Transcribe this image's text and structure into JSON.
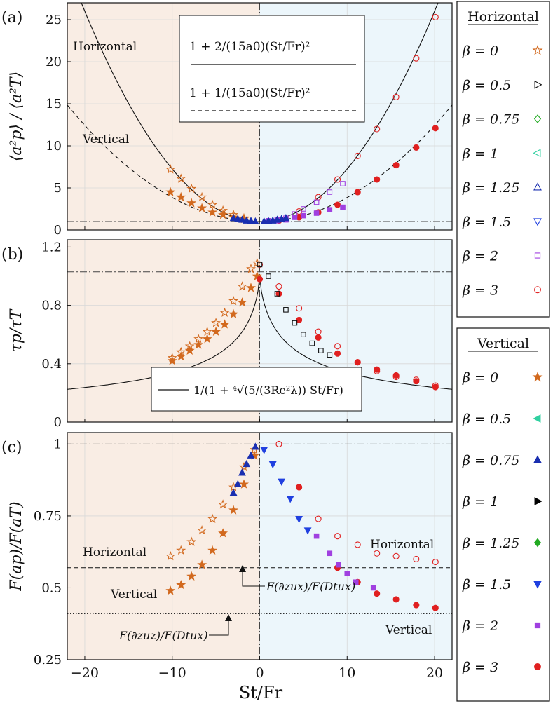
{
  "chart_data": {
    "type": "scatter",
    "xlabel": "St/Fr",
    "xlim": [
      -22,
      22
    ],
    "xticks": [
      "−20",
      "−10",
      "0",
      "10",
      "20"
    ],
    "xtick_values": [
      -20,
      -10,
      0,
      10,
      20
    ],
    "colors": {
      "bg_left": "#f9ede4",
      "bg_right": "#ecf6fb",
      "beta0": "#d2691e",
      "beta05": "#111111",
      "beta075": "#22aa22",
      "beta1": "#30d0a0",
      "beta125": "#1a2fb0",
      "beta15": "#2040e0",
      "beta2": "#a040e0",
      "beta3": "#e02020",
      "vbeta05": "#30d0a0",
      "vbeta075": "#1a2fb0",
      "vbeta1": "#000000",
      "vbeta125": "#22aa22",
      "vbeta15": "#2040e0"
    },
    "panels": [
      {
        "label": "(a)",
        "ylabel": "⟨a²p⟩ / ⟨a²T⟩",
        "ylim": [
          0,
          27
        ],
        "yticks": [
          "0",
          "5",
          "10",
          "15",
          "20",
          "25"
        ],
        "ytick_values": [
          0,
          5,
          10,
          15,
          20,
          25
        ],
        "refline": 1,
        "annotations": [
          "Horizontal",
          "Vertical"
        ],
        "legend_box": {
          "line1": "1 + 2/(15a0)(St/Fr)²",
          "line2": "1 + 1/(15a0)(St/Fr)²"
        },
        "series": [
          {
            "name": "Horizontal β=0",
            "marker": "star-open",
            "color": "#d2691e",
            "x": [
              -10.2,
              -9,
              -7.8,
              -6.6,
              -5.4,
              -4.2,
              -3,
              -1.8
            ],
            "y": [
              7.2,
              6.1,
              4.9,
              3.9,
              3.0,
              2.3,
              1.8,
              1.4
            ]
          },
          {
            "name": "Vertical β=0",
            "marker": "star",
            "color": "#d2691e",
            "x": [
              -10.2,
              -9,
              -7.8,
              -6.6,
              -5.4,
              -4.2,
              -3,
              -1.8
            ],
            "y": [
              4.5,
              3.9,
              3.2,
              2.6,
              2.1,
              1.8,
              1.5,
              1.3
            ]
          },
          {
            "name": "Horizontal β=3",
            "marker": "circle-open",
            "color": "#e02020",
            "x": [
              2.2,
              4.5,
              6.7,
              8.9,
              11.2,
              13.4,
              15.6,
              17.9,
              20.1
            ],
            "y": [
              1.2,
              2.2,
              3.9,
              6.0,
              8.8,
              12.0,
              15.8,
              20.4,
              25.3
            ]
          },
          {
            "name": "Vertical β=3",
            "marker": "circle",
            "color": "#e02020",
            "x": [
              2.2,
              4.5,
              6.7,
              8.9,
              11.2,
              13.4,
              15.6,
              17.9,
              20.1
            ],
            "y": [
              1.1,
              1.5,
              2.1,
              3.0,
              4.5,
              6.0,
              7.7,
              9.8,
              12.1
            ]
          },
          {
            "name": "Horizontal β=2",
            "marker": "square-open",
            "color": "#a040e0",
            "x": [
              1,
              2,
              3,
              4,
              5,
              6.5,
              8,
              9.5
            ],
            "y": [
              1.1,
              1.2,
              1.4,
              1.9,
              2.5,
              3.3,
              4.5,
              5.5
            ]
          },
          {
            "name": "Vertical β=2",
            "marker": "square",
            "color": "#a040e0",
            "x": [
              1,
              2,
              3,
              4,
              5,
              6.5,
              8,
              9.5
            ],
            "y": [
              1.0,
              1.1,
              1.2,
              1.5,
              1.7,
              2.0,
              2.4,
              2.7
            ]
          },
          {
            "name": "β=0.5–1.5 cluster",
            "marker": "triangle",
            "color": "#1a2fb0",
            "x": [
              -3,
              -2.5,
              -2,
              -1.5,
              -1,
              -0.5,
              0.5,
              1,
              1.5,
              2,
              2.5,
              3
            ],
            "y": [
              1.4,
              1.3,
              1.2,
              1.1,
              1.05,
              1.0,
              1.0,
              1.05,
              1.1,
              1.2,
              1.3,
              1.4
            ]
          }
        ]
      },
      {
        "label": "(b)",
        "ylabel": "τp/τT",
        "ylim": [
          0,
          1.25
        ],
        "yticks": [
          "0",
          "0.4",
          "0.8",
          "1.2"
        ],
        "ytick_values": [
          0,
          0.4,
          0.8,
          1.2
        ],
        "refline": 1.03,
        "legend_box": {
          "line1": "1/(1 + ⁴√(5/(3Re²λ)) St/Fr)"
        },
        "series": [
          {
            "name": "Horizontal β=0",
            "marker": "star-open",
            "color": "#d2691e",
            "x": [
              -10,
              -9,
              -8,
              -7,
              -6,
              -5,
              -4,
              -3,
              -2,
              -1,
              -0.3
            ],
            "y": [
              0.44,
              0.48,
              0.52,
              0.57,
              0.62,
              0.68,
              0.75,
              0.83,
              0.93,
              1.05,
              1.09
            ]
          },
          {
            "name": "Vertical β=0",
            "marker": "star",
            "color": "#d2691e",
            "x": [
              -10,
              -9,
              -8,
              -7,
              -6,
              -5,
              -4,
              -3,
              -2,
              -1,
              -0.3
            ],
            "y": [
              0.42,
              0.45,
              0.49,
              0.53,
              0.57,
              0.62,
              0.67,
              0.74,
              0.82,
              0.92,
              1.0
            ]
          },
          {
            "name": "Horizontal β=3",
            "marker": "circle-open",
            "color": "#e02020",
            "x": [
              0,
              2.2,
              4.5,
              6.7,
              8.9,
              11.2,
              13.4,
              15.6,
              17.9,
              20.1
            ],
            "y": [
              1.08,
              0.93,
              0.78,
              0.62,
              0.52,
              0.41,
              0.35,
              0.31,
              0.29,
              0.25
            ]
          },
          {
            "name": "Vertical β=3",
            "marker": "circle",
            "color": "#e02020",
            "x": [
              0,
              2.2,
              4.5,
              6.7,
              8.9,
              11.2,
              13.4,
              15.6,
              17.9,
              20.1
            ],
            "y": [
              0.98,
              0.88,
              0.7,
              0.58,
              0.47,
              0.41,
              0.36,
              0.32,
              0.28,
              0.24
            ]
          },
          {
            "name": "Horizontal β=0.5",
            "marker": "square-open",
            "color": "#111111",
            "x": [
              0,
              1,
              2,
              3,
              4,
              5,
              6,
              7,
              8
            ],
            "y": [
              1.08,
              1.0,
              0.88,
              0.77,
              0.68,
              0.6,
              0.54,
              0.49,
              0.46
            ]
          }
        ]
      },
      {
        "label": "(c)",
        "ylabel": "F(ap)/F(aT)",
        "ylim": [
          0.25,
          1.04
        ],
        "yticks": [
          "0.25",
          "0.5",
          "0.75",
          "1"
        ],
        "ytick_values": [
          0.25,
          0.5,
          0.75,
          1
        ],
        "refline": 1,
        "dashed_y": 0.57,
        "dotted_y": 0.41,
        "annotations": [
          "Horizontal",
          "Vertical",
          "Horizontal",
          "Vertical"
        ],
        "arrow_labels": [
          "F(∂zux)/F(Dtux)",
          "F(∂zuz)/F(Dtux)"
        ],
        "series": [
          {
            "name": "Horizontal β=0",
            "marker": "star-open",
            "color": "#d2691e",
            "x": [
              -10.2,
              -9,
              -7.8,
              -6.6,
              -5.4,
              -4.2,
              -3,
              -1.8,
              -0.6
            ],
            "y": [
              0.61,
              0.63,
              0.66,
              0.7,
              0.74,
              0.79,
              0.85,
              0.92,
              0.98
            ]
          },
          {
            "name": "Vertical β=0",
            "marker": "star",
            "color": "#d2691e",
            "x": [
              -10.2,
              -9,
              -7.8,
              -6.6,
              -5.4,
              -4.2,
              -3,
              -1.8,
              -0.6
            ],
            "y": [
              0.49,
              0.51,
              0.54,
              0.58,
              0.63,
              0.69,
              0.77,
              0.86,
              0.96
            ]
          },
          {
            "name": "Horizontal β=3",
            "marker": "circle-open",
            "color": "#e02020",
            "x": [
              2.2,
              4.5,
              6.7,
              8.9,
              11.2,
              13.4,
              15.6,
              17.9,
              20.1
            ],
            "y": [
              1.0,
              0.85,
              0.74,
              0.68,
              0.65,
              0.62,
              0.61,
              0.6,
              0.59
            ]
          },
          {
            "name": "Vertical β=3",
            "marker": "circle",
            "color": "#e02020",
            "x": [
              4.5,
              8.9,
              11.2,
              13.4,
              15.6,
              17.9,
              20.1
            ],
            "y": [
              0.85,
              0.57,
              0.52,
              0.48,
              0.46,
              0.44,
              0.43
            ]
          },
          {
            "name": "Vertical β=2",
            "marker": "square",
            "color": "#a040e0",
            "x": [
              6.5,
              8,
              9,
              10,
              11,
              13
            ],
            "y": [
              0.68,
              0.62,
              0.58,
              0.55,
              0.52,
              0.5
            ]
          },
          {
            "name": "Vertical β=1.5",
            "marker": "triangle-down",
            "color": "#2040e0",
            "x": [
              0.5,
              1.5,
              2.5,
              3.5,
              4.5,
              5.5
            ],
            "y": [
              0.98,
              0.93,
              0.87,
              0.81,
              0.74,
              0.7
            ]
          },
          {
            "name": "Vertical β=0.75",
            "marker": "triangle",
            "color": "#1a2fb0",
            "x": [
              -3,
              -2.5,
              -2,
              -1.5,
              -1,
              -0.5
            ],
            "y": [
              0.83,
              0.86,
              0.9,
              0.93,
              0.96,
              0.99
            ]
          }
        ]
      }
    ],
    "legend_horizontal": {
      "title": "Horizontal",
      "items": [
        {
          "label": "β = 0",
          "marker": "star-open",
          "color": "#d2691e"
        },
        {
          "label": "β = 0.5",
          "marker": "triangle-right-open",
          "color": "#111111"
        },
        {
          "label": "β = 0.75",
          "marker": "diamond-open",
          "color": "#22aa22"
        },
        {
          "label": "β = 1",
          "marker": "triangle-left-open",
          "color": "#30d0a0"
        },
        {
          "label": "β = 1.25",
          "marker": "triangle-open",
          "color": "#1a2fb0"
        },
        {
          "label": "β = 1.5",
          "marker": "triangle-down-open",
          "color": "#2040e0"
        },
        {
          "label": "β = 2",
          "marker": "square-open",
          "color": "#a040e0"
        },
        {
          "label": "β = 3",
          "marker": "circle-open",
          "color": "#e02020"
        }
      ]
    },
    "legend_vertical": {
      "title": "Vertical",
      "items": [
        {
          "label": "β = 0",
          "marker": "star",
          "color": "#d2691e"
        },
        {
          "label": "β = 0.5",
          "marker": "triangle-left",
          "color": "#30d0a0"
        },
        {
          "label": "β = 0.75",
          "marker": "triangle",
          "color": "#1a2fb0"
        },
        {
          "label": "β = 1",
          "marker": "triangle-right",
          "color": "#000000"
        },
        {
          "label": "β = 1.25",
          "marker": "diamond",
          "color": "#22aa22"
        },
        {
          "label": "β = 1.5",
          "marker": "triangle-down",
          "color": "#2040e0"
        },
        {
          "label": "β = 2",
          "marker": "square",
          "color": "#a040e0"
        },
        {
          "label": "β = 3",
          "marker": "circle",
          "color": "#e02020"
        }
      ]
    }
  }
}
